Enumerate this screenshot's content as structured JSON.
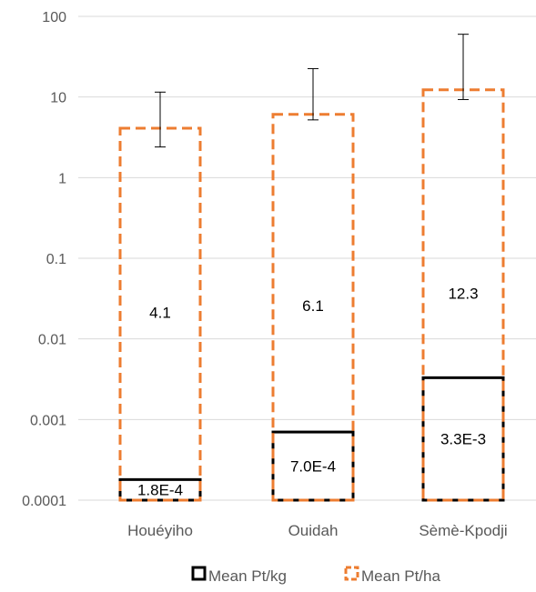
{
  "chart_data": {
    "type": "bar",
    "y_scale": "log",
    "ylim": [
      0.0001,
      100
    ],
    "y_ticks": [
      "0.0001",
      "0.001",
      "0.01",
      "0.1",
      "1",
      "10",
      "100"
    ],
    "grid": true,
    "legend_position": "bottom",
    "categories": [
      "Houéyiho",
      "Ouidah",
      "Sèmè-Kpodji"
    ],
    "series": [
      {
        "name": "Mean Pt/kg",
        "style": "solid-black-outline",
        "color": "#000000",
        "values": [
          0.00018,
          0.0007,
          0.0033
        ],
        "labels": [
          "1.8E-4",
          "7.0E-4",
          "3.3E-3"
        ]
      },
      {
        "name": "Mean Pt/ha",
        "style": "dashed-orange-outline",
        "color": "#ED7D31",
        "values": [
          4.1,
          6.1,
          12.3
        ],
        "labels": [
          "4.1",
          "6.1",
          "12.3"
        ],
        "error_bars": [
          {
            "low": 2.4,
            "high": 11.5
          },
          {
            "low": 5.2,
            "high": 22.5
          },
          {
            "low": 9.3,
            "high": 60
          }
        ]
      }
    ]
  }
}
